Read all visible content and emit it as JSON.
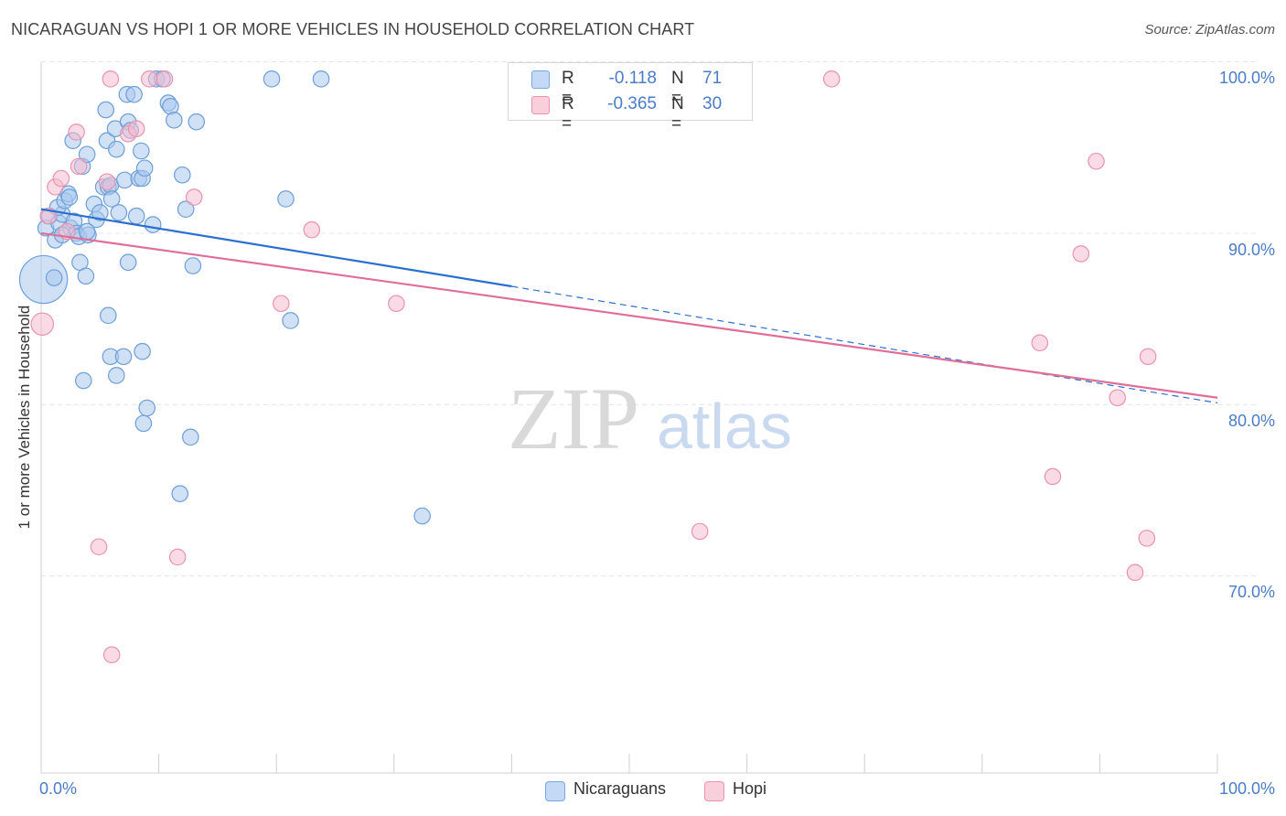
{
  "title": "NICARAGUAN VS HOPI 1 OR MORE VEHICLES IN HOUSEHOLD CORRELATION CHART",
  "source": "Source: ZipAtlas.com",
  "watermark": {
    "zip": "ZIP",
    "atlas": "atlas"
  },
  "colors": {
    "blue_fill": "#aac8ef",
    "blue_stroke": "#6d9fd8",
    "blue_line": "#2a6fd0",
    "pink_fill": "#f6bccd",
    "pink_stroke": "#e894b0",
    "pink_line": "#e06e98",
    "tick_text": "#4a7cc7",
    "grid": "#e4e4e4"
  },
  "legend": {
    "rows": [
      {
        "r_label": "R =",
        "r_value": "-0.118",
        "n_label": "N =",
        "n_value": "71"
      },
      {
        "r_label": "R =",
        "r_value": "-0.365",
        "n_label": "N =",
        "n_value": "30"
      }
    ]
  },
  "bottom_legend": {
    "series1": "Nicaraguans",
    "series2": "Hopi"
  },
  "chart_data": {
    "type": "scatter",
    "title": "NICARAGUAN VS HOPI 1 OR MORE VEHICLES IN HOUSEHOLD CORRELATION CHART",
    "xlabel": "",
    "ylabel": "1 or more Vehicles in Household",
    "xlim": [
      0,
      100
    ],
    "ylim": [
      59.5,
      101.3
    ],
    "x_tick_labels": [
      {
        "value": 0,
        "label": "0.0%"
      },
      {
        "value": 100,
        "label": "100.0%"
      }
    ],
    "y_tick_labels": [
      {
        "value": 100,
        "label": "100.0%"
      },
      {
        "value": 90,
        "label": "90.0%"
      },
      {
        "value": 80,
        "label": "80.0%"
      },
      {
        "value": 70,
        "label": "70.0%"
      }
    ],
    "y_gridlines": [
      101,
      91,
      81,
      71
    ],
    "series": [
      {
        "name": "Nicaraguans",
        "r": -0.118,
        "n": 71,
        "trend": {
          "x0": 0,
          "y0": 92.4,
          "x1": 40,
          "y1": 87.9,
          "dash_to_x": 100,
          "dash_to_y": 81.1
        },
        "points": [
          [
            0.2,
            88.3,
            30
          ],
          [
            1.1,
            88.4,
            10
          ],
          [
            0.4,
            91.3,
            10
          ],
          [
            0.7,
            92.0,
            10
          ],
          [
            1.2,
            90.6,
            10
          ],
          [
            1.5,
            91.6,
            10
          ],
          [
            1.8,
            92.1,
            10
          ],
          [
            1.4,
            92.5,
            10
          ],
          [
            2.0,
            92.9,
            10
          ],
          [
            2.3,
            93.3,
            10
          ],
          [
            2.5,
            91.3,
            10
          ],
          [
            2.8,
            91.7,
            10
          ],
          [
            3.0,
            91.0,
            10
          ],
          [
            2.7,
            96.4,
            10
          ],
          [
            3.2,
            90.8,
            10
          ],
          [
            3.5,
            94.9,
            10
          ],
          [
            3.9,
            95.6,
            10
          ],
          [
            4.0,
            90.9,
            10
          ],
          [
            4.5,
            92.7,
            10
          ],
          [
            4.7,
            91.8,
            10
          ],
          [
            5.0,
            92.2,
            10
          ],
          [
            5.3,
            93.7,
            10
          ],
          [
            5.5,
            98.2,
            10
          ],
          [
            5.6,
            96.4,
            10
          ],
          [
            5.7,
            93.7,
            10
          ],
          [
            5.9,
            93.8,
            10
          ],
          [
            6.0,
            93.0,
            10
          ],
          [
            6.3,
            97.1,
            10
          ],
          [
            6.4,
            95.9,
            10
          ],
          [
            6.6,
            92.2,
            10
          ],
          [
            7.1,
            94.1,
            10
          ],
          [
            7.3,
            99.1,
            10
          ],
          [
            7.4,
            97.5,
            10
          ],
          [
            7.6,
            97.0,
            10
          ],
          [
            7.9,
            99.1,
            10
          ],
          [
            8.1,
            92.0,
            10
          ],
          [
            8.3,
            94.2,
            10
          ],
          [
            8.5,
            95.8,
            10
          ],
          [
            8.6,
            94.2,
            10
          ],
          [
            8.8,
            94.8,
            10
          ],
          [
            9.5,
            91.5,
            10
          ],
          [
            9.8,
            100.0,
            10
          ],
          [
            10.3,
            100.0,
            10
          ],
          [
            10.8,
            98.6,
            10
          ],
          [
            11.0,
            98.4,
            10
          ],
          [
            11.3,
            97.6,
            10
          ],
          [
            12.0,
            94.4,
            10
          ],
          [
            12.3,
            92.4,
            10
          ],
          [
            13.2,
            97.5,
            10
          ],
          [
            19.6,
            100.0,
            10
          ],
          [
            23.8,
            100.0,
            10
          ],
          [
            20.8,
            93.0,
            10
          ],
          [
            21.2,
            85.9,
            10
          ],
          [
            3.3,
            89.3,
            10
          ],
          [
            3.8,
            88.5,
            10
          ],
          [
            5.7,
            86.2,
            10
          ],
          [
            7.4,
            89.3,
            10
          ],
          [
            5.9,
            83.8,
            10
          ],
          [
            6.4,
            82.7,
            10
          ],
          [
            7.0,
            83.8,
            10
          ],
          [
            8.6,
            84.1,
            10
          ],
          [
            3.6,
            82.4,
            10
          ],
          [
            9.0,
            80.8,
            10
          ],
          [
            8.7,
            79.9,
            10
          ],
          [
            12.7,
            79.1,
            10
          ],
          [
            12.9,
            89.1,
            10
          ],
          [
            11.8,
            75.8,
            10
          ],
          [
            32.4,
            74.5,
            10
          ],
          [
            3.9,
            91.1,
            10
          ],
          [
            1.8,
            90.9,
            10
          ],
          [
            2.4,
            93.1,
            10
          ]
        ]
      },
      {
        "name": "Hopi",
        "r": -0.365,
        "n": 30,
        "trend": {
          "x0": 0,
          "y0": 91.0,
          "x1": 100,
          "y1": 81.4
        },
        "points": [
          [
            0.1,
            85.7,
            14
          ],
          [
            0.6,
            92.0,
            10
          ],
          [
            1.2,
            93.7,
            10
          ],
          [
            1.7,
            94.2,
            10
          ],
          [
            2.2,
            91.1,
            10
          ],
          [
            3.0,
            96.9,
            10
          ],
          [
            3.2,
            94.9,
            10
          ],
          [
            5.9,
            100.0,
            10
          ],
          [
            5.6,
            94.0,
            10
          ],
          [
            7.4,
            96.8,
            10
          ],
          [
            8.1,
            97.1,
            10
          ],
          [
            9.2,
            100.0,
            10
          ],
          [
            10.5,
            100.0,
            10
          ],
          [
            13.0,
            93.1,
            10
          ],
          [
            23.0,
            91.2,
            10
          ],
          [
            20.4,
            86.9,
            10
          ],
          [
            30.2,
            86.9,
            10
          ],
          [
            67.2,
            100.0,
            10
          ],
          [
            89.7,
            95.2,
            10
          ],
          [
            88.4,
            89.8,
            10
          ],
          [
            84.9,
            84.6,
            10
          ],
          [
            91.5,
            81.4,
            10
          ],
          [
            94.1,
            83.8,
            10
          ],
          [
            86.0,
            76.8,
            10
          ],
          [
            56.0,
            73.6,
            10
          ],
          [
            94.0,
            73.2,
            10
          ],
          [
            93.0,
            71.2,
            10
          ],
          [
            11.6,
            72.1,
            10
          ],
          [
            4.9,
            72.7,
            10
          ],
          [
            6.0,
            66.4,
            10
          ]
        ]
      }
    ]
  }
}
